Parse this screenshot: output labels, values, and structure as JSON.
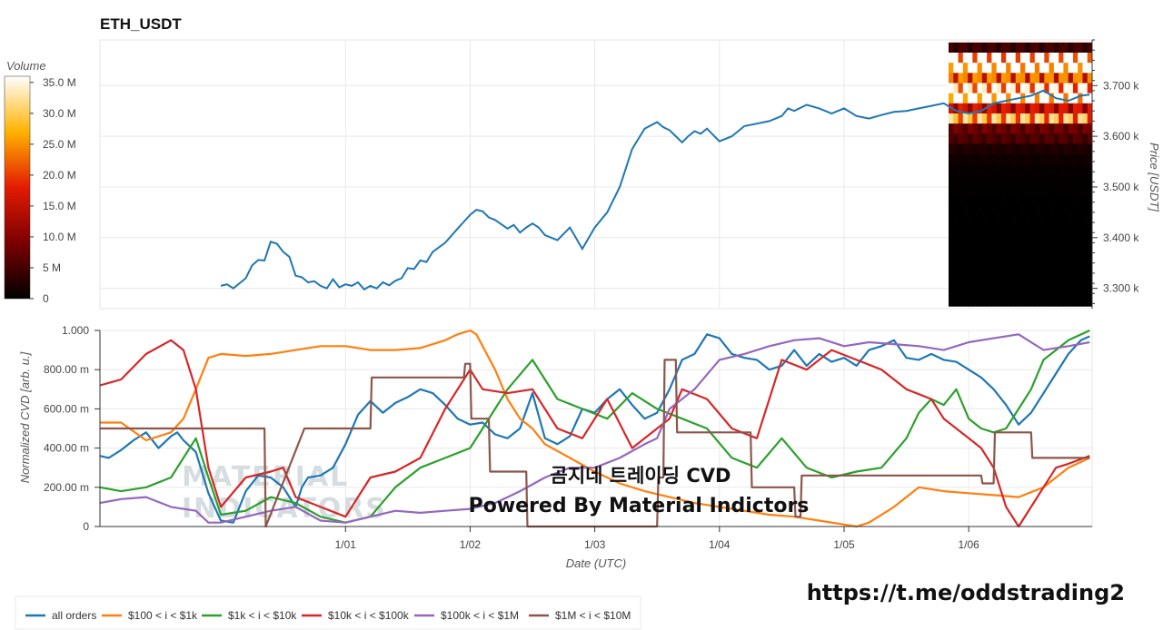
{
  "title": "ETH_USDT",
  "colorbar": {
    "label": "Volume",
    "ticks": [
      "35.0 M",
      "30.0 M",
      "25.0 M",
      "20.0 M",
      "15.0 M",
      "10.0 M",
      "5 M",
      "0"
    ]
  },
  "watermark": {
    "line1": "곰지네 트레이딩 CVD",
    "line2": "Powered By Material Indictors",
    "ghost1": "MATERIAL",
    "ghost2": "INDICATORS"
  },
  "link": "https://t.me/oddstrading2",
  "colors": {
    "all": "#1f77b4",
    "s100": "#ff7f0e",
    "s1k": "#2ca02c",
    "s10k": "#d62728",
    "s100k": "#9467bd",
    "s1m": "#8c564b"
  },
  "chart_data": [
    {
      "type": "line",
      "title": "ETH_USDT",
      "ylabel": "Price [USDT]",
      "yticks": [
        "3.700 k",
        "3.600 k",
        "3.500 k",
        "3.400 k",
        "3.300 k"
      ],
      "ylim": [
        3260,
        3790
      ],
      "series": [
        {
          "name": "price",
          "x": [
            0,
            0.05,
            0.1,
            0.2,
            0.25,
            0.3,
            0.35,
            0.4,
            0.45,
            0.5,
            0.55,
            0.6,
            0.65,
            0.7,
            0.75,
            0.8,
            0.85,
            0.9,
            0.95,
            1.0,
            1.05,
            1.1,
            1.15,
            1.2,
            1.25,
            1.3,
            1.35,
            1.4,
            1.45,
            1.5,
            1.55,
            1.6,
            1.65,
            1.7,
            1.8,
            1.9,
            2.0,
            2.05,
            2.1,
            2.15,
            2.2,
            2.3,
            2.35,
            2.4,
            2.45,
            2.5,
            2.55,
            2.6,
            2.7,
            2.8,
            2.9,
            3.0,
            3.1,
            3.2,
            3.3,
            3.4,
            3.5,
            3.55,
            3.6,
            3.65,
            3.7,
            3.75,
            3.8,
            3.85,
            3.9,
            4.0,
            4.1,
            4.2,
            4.3,
            4.4,
            4.5,
            4.55,
            4.6,
            4.7,
            4.8,
            4.9,
            5.0,
            5.1,
            5.2,
            5.3,
            5.4,
            5.5,
            5.6,
            5.7,
            5.8,
            5.9,
            6.0,
            6.1,
            6.2,
            6.3,
            6.4,
            6.5,
            6.6,
            6.7,
            6.8,
            6.9,
            6.97
          ],
          "y": [
            3305,
            3308,
            3300,
            3320,
            3345,
            3356,
            3355,
            3392,
            3388,
            3372,
            3362,
            3325,
            3322,
            3312,
            3314,
            3305,
            3300,
            3318,
            3302,
            3308,
            3305,
            3312,
            3298,
            3305,
            3300,
            3312,
            3306,
            3315,
            3320,
            3340,
            3338,
            3355,
            3352,
            3372,
            3390,
            3418,
            3445,
            3455,
            3452,
            3440,
            3435,
            3418,
            3425,
            3410,
            3420,
            3428,
            3420,
            3405,
            3395,
            3420,
            3378,
            3420,
            3450,
            3500,
            3575,
            3615,
            3628,
            3618,
            3612,
            3600,
            3588,
            3600,
            3610,
            3605,
            3615,
            3590,
            3600,
            3620,
            3625,
            3630,
            3640,
            3655,
            3650,
            3662,
            3655,
            3645,
            3655,
            3640,
            3635,
            3642,
            3648,
            3650,
            3655,
            3660,
            3665,
            3650,
            3645,
            3650,
            3665,
            3670,
            3675,
            3680,
            3690,
            3675,
            3670,
            3680,
            3682
          ]
        }
      ],
      "heatmap": {
        "price_levels": [
          3775,
          3755,
          3735,
          3715,
          3695,
          3675,
          3655,
          3635,
          3615,
          3595,
          3575,
          3555,
          3535,
          3515,
          3495,
          3475,
          3455,
          3435,
          3415,
          3395,
          3375,
          3355,
          3335,
          3315,
          3295,
          3275
        ],
        "volume_M": [
          4,
          30,
          36,
          20,
          28,
          34,
          14,
          25,
          7,
          5,
          2,
          1,
          0.5,
          0.3,
          0.2,
          0.1,
          0.1,
          0.1,
          0,
          0,
          0,
          0,
          0,
          0,
          0,
          0
        ]
      }
    },
    {
      "type": "line",
      "xlabel": "Date (UTC)",
      "ylabel": "Normalized CVD [arb. u.]",
      "yticks": [
        "1.000",
        "800.00 m",
        "600.00 m",
        "400.00 m",
        "200.00 m",
        "0"
      ],
      "ylim": [
        0,
        1
      ],
      "xticks": [
        "1/01",
        "1/02",
        "1/03",
        "1/04",
        "1/05",
        "1/06"
      ],
      "xtick_positions": [
        1,
        2,
        3,
        4,
        5,
        6
      ],
      "xlim": [
        -0.97,
        6.99
      ],
      "series": [
        {
          "name": "all orders",
          "x": [
            -0.97,
            -0.9,
            -0.8,
            -0.7,
            -0.6,
            -0.5,
            -0.4,
            -0.35,
            -0.3,
            -0.2,
            -0.1,
            0,
            0.1,
            0.2,
            0.3,
            0.4,
            0.5,
            0.6,
            0.65,
            0.7,
            0.8,
            0.9,
            1.0,
            1.1,
            1.2,
            1.3,
            1.4,
            1.5,
            1.6,
            1.7,
            1.8,
            1.9,
            2.0,
            2.1,
            2.2,
            2.3,
            2.4,
            2.5,
            2.6,
            2.7,
            2.8,
            2.9,
            3.0,
            3.1,
            3.2,
            3.3,
            3.4,
            3.5,
            3.6,
            3.7,
            3.8,
            3.9,
            4.0,
            4.1,
            4.2,
            4.3,
            4.4,
            4.5,
            4.6,
            4.7,
            4.8,
            4.9,
            5.0,
            5.1,
            5.2,
            5.3,
            5.4,
            5.5,
            5.6,
            5.7,
            5.8,
            5.9,
            6.0,
            6.1,
            6.2,
            6.3,
            6.4,
            6.5,
            6.6,
            6.7,
            6.8,
            6.9,
            6.97
          ],
          "y": [
            0.36,
            0.35,
            0.39,
            0.44,
            0.48,
            0.4,
            0.46,
            0.48,
            0.44,
            0.38,
            0.17,
            0.03,
            0.02,
            0.18,
            0.26,
            0.25,
            0.2,
            0.1,
            0.2,
            0.25,
            0.26,
            0.3,
            0.42,
            0.57,
            0.64,
            0.58,
            0.63,
            0.66,
            0.7,
            0.68,
            0.62,
            0.55,
            0.52,
            0.53,
            0.47,
            0.45,
            0.5,
            0.68,
            0.45,
            0.42,
            0.46,
            0.6,
            0.58,
            0.65,
            0.7,
            0.62,
            0.55,
            0.58,
            0.7,
            0.85,
            0.88,
            0.98,
            0.96,
            0.88,
            0.86,
            0.85,
            0.8,
            0.82,
            0.9,
            0.82,
            0.88,
            0.84,
            0.86,
            0.82,
            0.9,
            0.92,
            0.95,
            0.86,
            0.85,
            0.88,
            0.85,
            0.84,
            0.8,
            0.76,
            0.7,
            0.62,
            0.52,
            0.58,
            0.68,
            0.78,
            0.88,
            0.95,
            0.97
          ]
        },
        {
          "name": "$100 < i < $1k",
          "x": [
            -0.97,
            -0.8,
            -0.6,
            -0.4,
            -0.3,
            -0.2,
            -0.1,
            0,
            0.2,
            0.4,
            0.6,
            0.8,
            1.0,
            1.2,
            1.4,
            1.6,
            1.8,
            1.9,
            2.0,
            2.05,
            2.1,
            2.2,
            2.3,
            2.4,
            2.5,
            2.6,
            2.8,
            3.0,
            3.2,
            3.4,
            3.6,
            3.8,
            4.0,
            4.2,
            4.4,
            4.6,
            4.8,
            5.0,
            5.1,
            5.2,
            5.4,
            5.6,
            5.8,
            6.0,
            6.2,
            6.4,
            6.6,
            6.8,
            6.97
          ],
          "y": [
            0.53,
            0.53,
            0.44,
            0.48,
            0.55,
            0.7,
            0.86,
            0.88,
            0.87,
            0.88,
            0.9,
            0.92,
            0.92,
            0.9,
            0.9,
            0.91,
            0.95,
            0.98,
            1.0,
            0.98,
            0.92,
            0.8,
            0.65,
            0.55,
            0.5,
            0.42,
            0.35,
            0.28,
            0.22,
            0.18,
            0.15,
            0.12,
            0.1,
            0.08,
            0.06,
            0.05,
            0.03,
            0.01,
            0.0,
            0.02,
            0.1,
            0.2,
            0.18,
            0.17,
            0.16,
            0.15,
            0.2,
            0.3,
            0.35
          ]
        },
        {
          "name": "$1k < i < $10k",
          "x": [
            -0.97,
            -0.8,
            -0.6,
            -0.4,
            -0.2,
            -0.1,
            0,
            0.2,
            0.4,
            0.6,
            0.8,
            1.0,
            1.2,
            1.4,
            1.6,
            1.8,
            2.0,
            2.1,
            2.2,
            2.3,
            2.5,
            2.7,
            2.9,
            3.1,
            3.3,
            3.5,
            3.7,
            3.9,
            4.1,
            4.3,
            4.5,
            4.7,
            4.9,
            5.1,
            5.3,
            5.5,
            5.6,
            5.7,
            5.8,
            5.9,
            6.0,
            6.1,
            6.2,
            6.3,
            6.4,
            6.5,
            6.6,
            6.7,
            6.8,
            6.97
          ],
          "y": [
            0.2,
            0.18,
            0.2,
            0.25,
            0.45,
            0.25,
            0.06,
            0.08,
            0.15,
            0.12,
            0.05,
            0.02,
            0.05,
            0.2,
            0.3,
            0.35,
            0.4,
            0.5,
            0.6,
            0.7,
            0.85,
            0.65,
            0.6,
            0.55,
            0.68,
            0.6,
            0.55,
            0.5,
            0.35,
            0.3,
            0.45,
            0.3,
            0.25,
            0.28,
            0.3,
            0.45,
            0.58,
            0.65,
            0.62,
            0.7,
            0.55,
            0.5,
            0.48,
            0.5,
            0.6,
            0.7,
            0.85,
            0.9,
            0.95,
            1.0
          ]
        },
        {
          "name": "$10k < i < $100k",
          "x": [
            -0.97,
            -0.8,
            -0.6,
            -0.4,
            -0.3,
            -0.2,
            -0.1,
            0,
            0.2,
            0.4,
            0.5,
            0.6,
            0.8,
            1.0,
            1.2,
            1.4,
            1.6,
            1.8,
            1.9,
            2.0,
            2.1,
            2.3,
            2.5,
            2.7,
            2.9,
            3.1,
            3.3,
            3.5,
            3.6,
            3.7,
            3.9,
            4.1,
            4.3,
            4.5,
            4.7,
            4.9,
            5.1,
            5.3,
            5.5,
            5.7,
            5.8,
            5.9,
            6.0,
            6.1,
            6.2,
            6.3,
            6.4,
            6.5,
            6.6,
            6.7,
            6.8,
            6.97
          ],
          "y": [
            0.72,
            0.75,
            0.88,
            0.95,
            0.9,
            0.7,
            0.3,
            0.1,
            0.25,
            0.28,
            0.3,
            0.15,
            0.1,
            0.05,
            0.25,
            0.28,
            0.35,
            0.6,
            0.7,
            0.8,
            0.7,
            0.68,
            0.7,
            0.5,
            0.45,
            0.65,
            0.4,
            0.5,
            0.55,
            0.7,
            0.65,
            0.5,
            0.45,
            0.85,
            0.8,
            0.9,
            0.85,
            0.8,
            0.7,
            0.65,
            0.55,
            0.5,
            0.45,
            0.4,
            0.3,
            0.1,
            0.0,
            0.1,
            0.2,
            0.3,
            0.32,
            0.36
          ]
        },
        {
          "name": "$100k < i < $1M",
          "x": [
            -0.97,
            -0.8,
            -0.6,
            -0.4,
            -0.2,
            -0.1,
            0,
            0.2,
            0.4,
            0.6,
            0.8,
            1.0,
            1.2,
            1.4,
            1.6,
            1.8,
            2.0,
            2.2,
            2.4,
            2.6,
            2.8,
            3.0,
            3.2,
            3.4,
            3.5,
            3.6,
            3.8,
            4.0,
            4.2,
            4.4,
            4.6,
            4.8,
            5.0,
            5.2,
            5.4,
            5.6,
            5.8,
            6.0,
            6.2,
            6.4,
            6.6,
            6.8,
            6.97
          ],
          "y": [
            0.12,
            0.14,
            0.15,
            0.1,
            0.08,
            0.02,
            0.02,
            0.05,
            0.08,
            0.1,
            0.03,
            0.02,
            0.05,
            0.08,
            0.07,
            0.08,
            0.09,
            0.12,
            0.18,
            0.25,
            0.3,
            0.3,
            0.35,
            0.42,
            0.45,
            0.6,
            0.7,
            0.85,
            0.88,
            0.92,
            0.95,
            0.96,
            0.92,
            0.94,
            0.93,
            0.92,
            0.9,
            0.94,
            0.96,
            0.98,
            0.9,
            0.92,
            0.94
          ]
        },
        {
          "name": "$1M < i < $10M",
          "x": [
            -0.97,
            0.35,
            0.36,
            0.67,
            0.68,
            1.2,
            1.21,
            1.95,
            1.96,
            2.0,
            2.01,
            2.15,
            2.16,
            2.45,
            2.46,
            3.5,
            3.51,
            3.55,
            3.56,
            3.65,
            3.66,
            4.05,
            4.06,
            4.25,
            4.26,
            4.6,
            4.61,
            4.65,
            4.66,
            6.1,
            6.11,
            6.2,
            6.21,
            6.5,
            6.51,
            6.97
          ],
          "y": [
            0.5,
            0.5,
            0.0,
            0.5,
            0.5,
            0.5,
            0.76,
            0.76,
            0.83,
            0.83,
            0.55,
            0.55,
            0.28,
            0.28,
            0.0,
            0.0,
            0.25,
            0.25,
            0.85,
            0.85,
            0.48,
            0.48,
            0.48,
            0.48,
            0.2,
            0.2,
            0.05,
            0.05,
            0.26,
            0.26,
            0.22,
            0.22,
            0.48,
            0.48,
            0.35,
            0.35
          ]
        }
      ]
    }
  ],
  "legend": [
    "all orders",
    "$100 < i < $1k",
    "$1k < i < $10k",
    "$10k < i < $100k",
    "$100k < i < $1M",
    "$1M < i < $10M"
  ]
}
